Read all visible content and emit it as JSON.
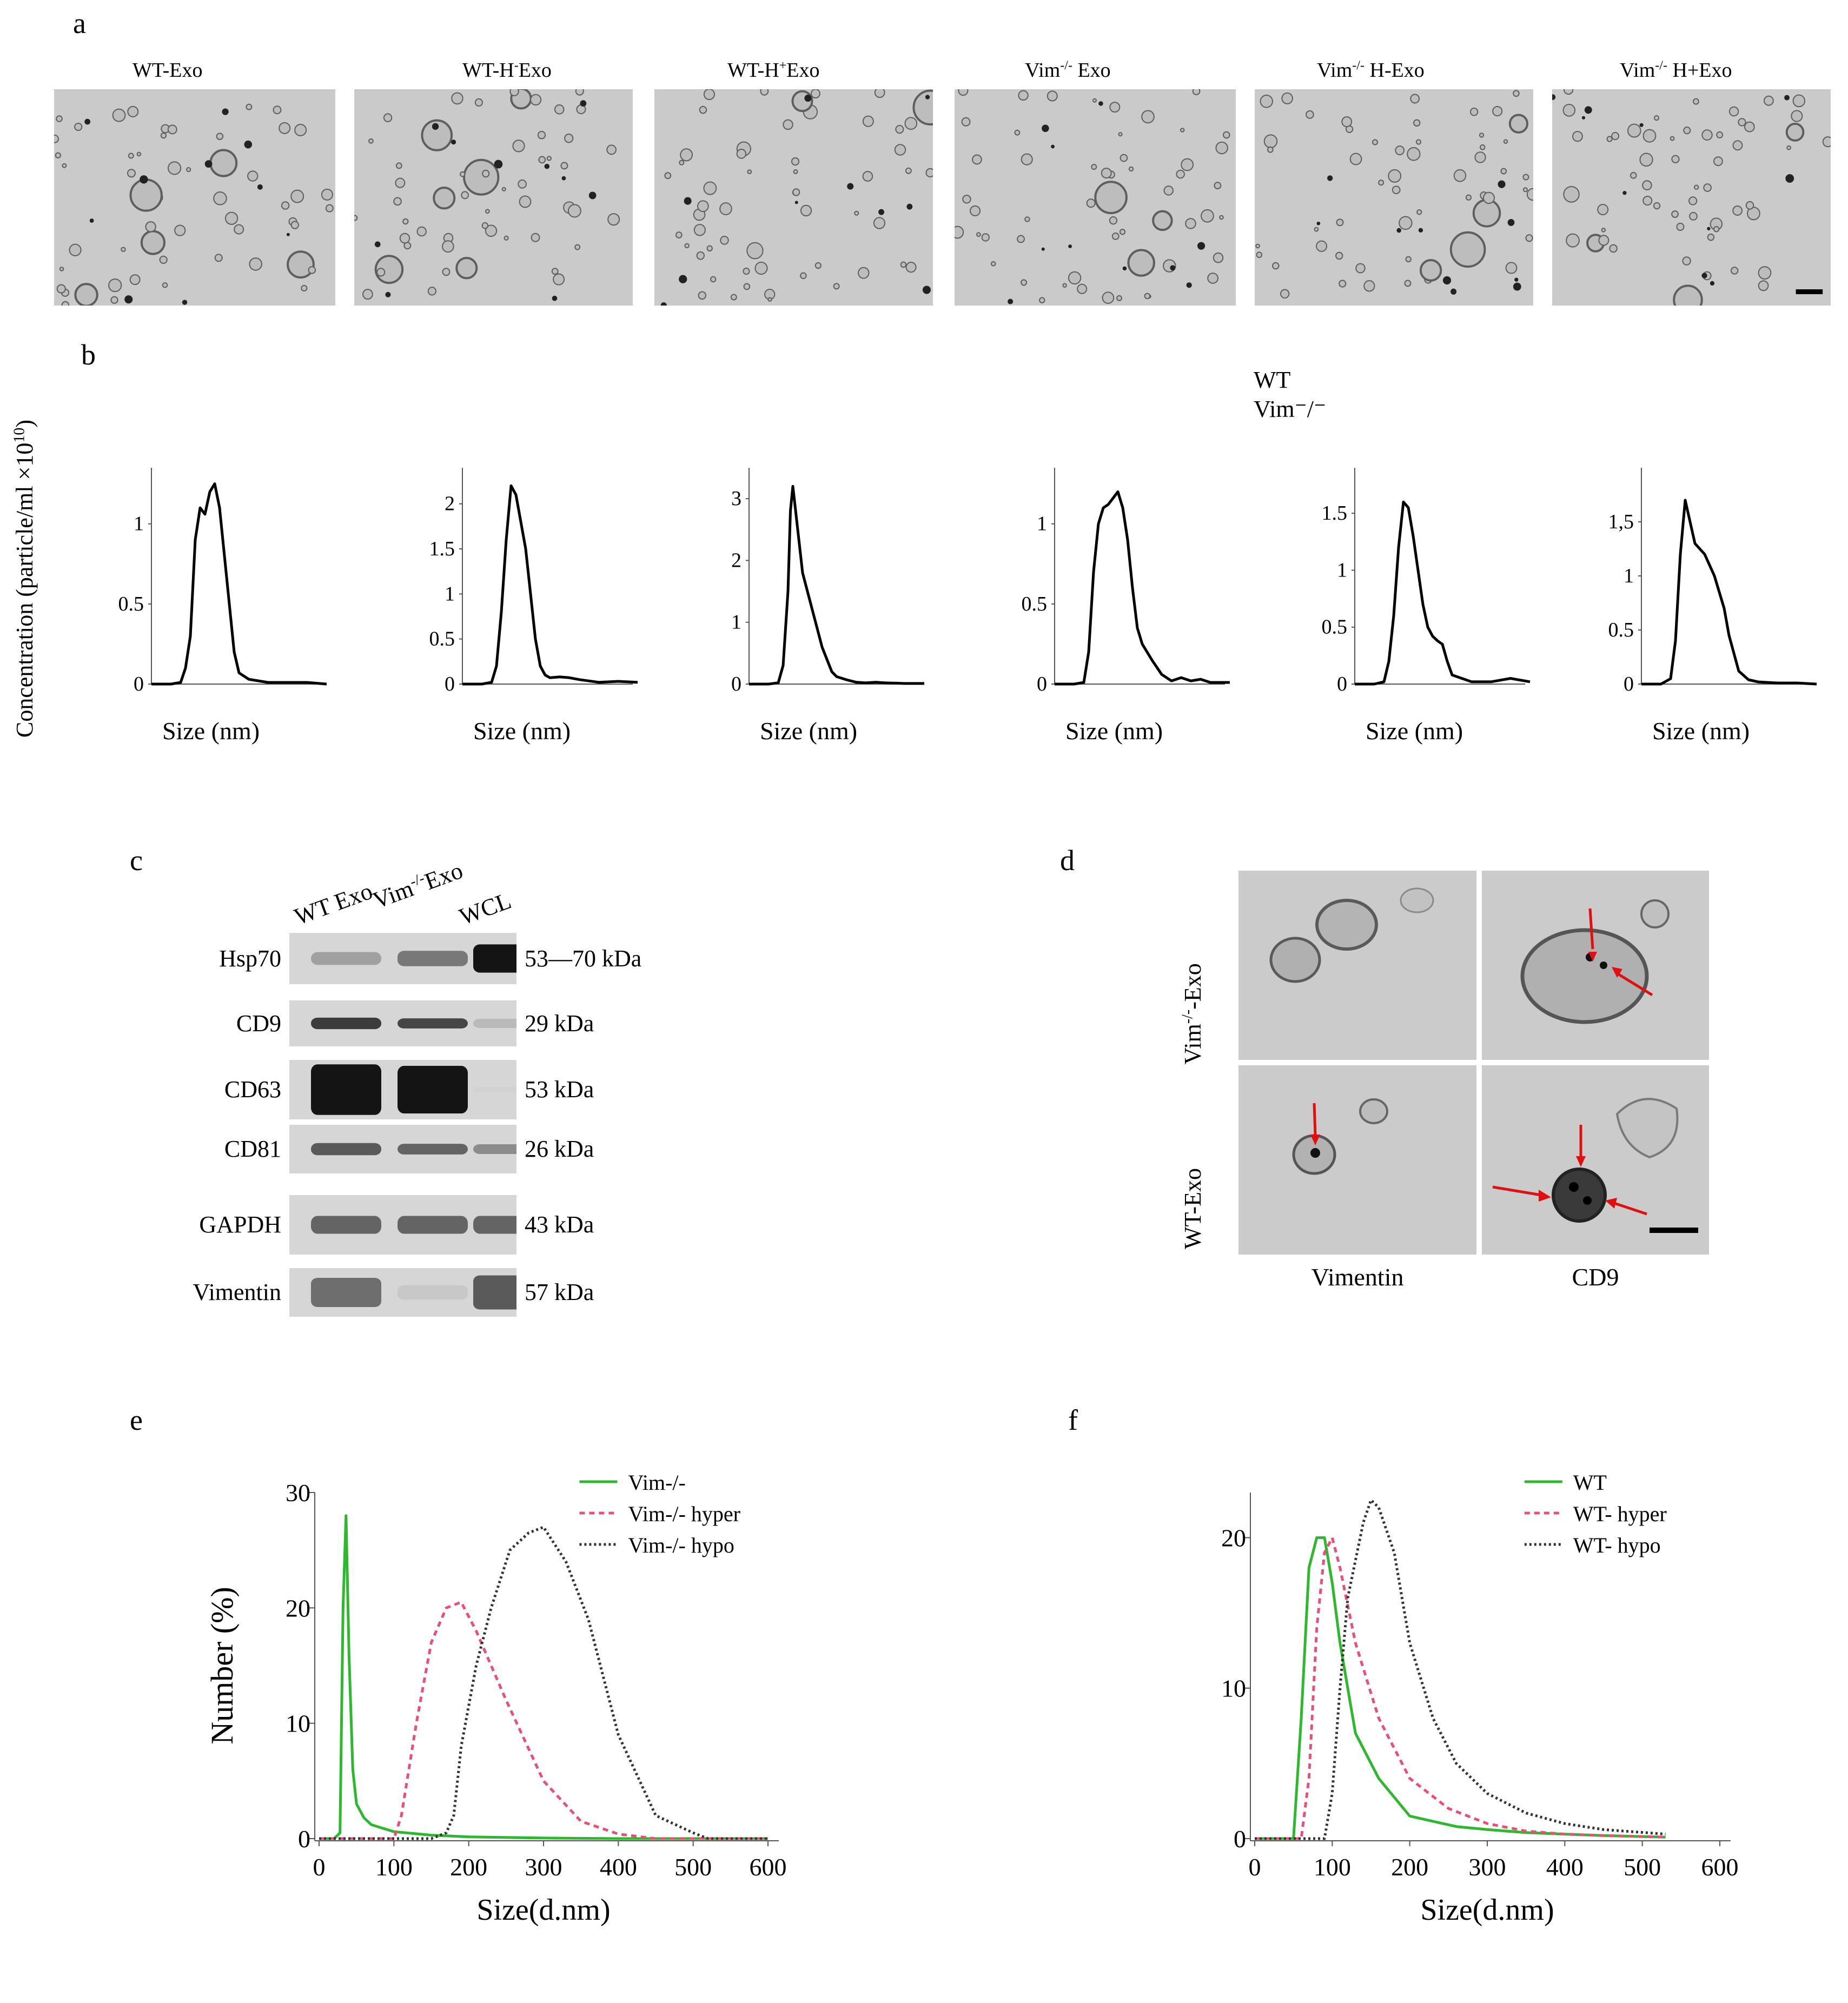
{
  "panels": {
    "a": "a",
    "b": "b",
    "c": "c",
    "d": "d",
    "e": "e",
    "f": "f"
  },
  "tem_labels": [
    {
      "base": "WT-Exo",
      "sup": "",
      "rest": ""
    },
    {
      "base": "WT-H",
      "sup": "-",
      "rest": "Exo"
    },
    {
      "base": "WT-H",
      "sup": "+",
      "rest": "Exo"
    },
    {
      "base": "Vim",
      "sup": "-/-",
      "rest": " Exo"
    },
    {
      "base": "Vim",
      "sup": "-/-",
      "rest": " H-Exo"
    },
    {
      "base": "Vim",
      "sup": "-/-",
      "rest": " H+Exo"
    }
  ],
  "nta": {
    "ylabel": "Concentration (particle/ml ×10",
    "ylabel_sup": "10",
    "ylabel_end": ")",
    "xlabel": "Size (nm)",
    "legend_line1": "WT",
    "legend_line2": "Vim⁻/⁻"
  },
  "chart_data": [
    {
      "type": "line",
      "title": "",
      "xlabel": "Size (nm)",
      "xticks": [
        "100",
        "200",
        "300"
      ],
      "yticks": [
        "0",
        "0.5",
        "1"
      ],
      "ylim": [
        0,
        1.35
      ],
      "x": [
        20,
        40,
        60,
        80,
        90,
        100,
        110,
        120,
        130,
        140,
        150,
        160,
        170,
        180,
        190,
        200,
        220,
        240,
        260,
        300,
        340,
        380
      ],
      "y": [
        0,
        0,
        0,
        0.01,
        0.1,
        0.3,
        0.9,
        1.1,
        1.06,
        1.2,
        1.25,
        1.1,
        0.8,
        0.5,
        0.2,
        0.07,
        0.03,
        0.02,
        0.01,
        0.01,
        0.01,
        0
      ]
    },
    {
      "type": "line",
      "title": "",
      "xlabel": "Size (nm)",
      "xticks": [
        "100",
        "200",
        "300"
      ],
      "yticks": [
        "0",
        "0.5",
        "1",
        "1.5",
        "2"
      ],
      "ylim": [
        0,
        2.4
      ],
      "x": [
        20,
        40,
        60,
        80,
        90,
        100,
        110,
        120,
        130,
        140,
        150,
        160,
        170,
        180,
        190,
        200,
        220,
        240,
        260,
        300,
        340,
        380
      ],
      "y": [
        0,
        0,
        0,
        0.02,
        0.2,
        0.8,
        1.6,
        2.2,
        2.1,
        1.8,
        1.5,
        1.0,
        0.5,
        0.2,
        0.1,
        0.07,
        0.08,
        0.07,
        0.05,
        0.02,
        0.03,
        0.02
      ]
    },
    {
      "type": "line",
      "title": "",
      "xlabel": "Size (nm)",
      "xticks": [
        "100",
        "200",
        "300"
      ],
      "yticks": [
        "0",
        "1",
        "2",
        "3"
      ],
      "ylim": [
        0,
        3.5
      ],
      "x": [
        20,
        40,
        60,
        80,
        90,
        100,
        105,
        110,
        120,
        130,
        140,
        150,
        160,
        170,
        180,
        190,
        200,
        220,
        240,
        260,
        280,
        300,
        340,
        380
      ],
      "y": [
        0,
        0,
        0,
        0.02,
        0.3,
        1.5,
        2.8,
        3.2,
        2.5,
        1.8,
        1.5,
        1.2,
        0.9,
        0.6,
        0.4,
        0.2,
        0.12,
        0.07,
        0.03,
        0.02,
        0.03,
        0.02,
        0.01,
        0.01
      ]
    },
    {
      "type": "line",
      "title": "",
      "xlabel": "Size (nm)",
      "xticks": [
        "100",
        "200",
        "300"
      ],
      "yticks": [
        "0",
        "0.5",
        "1"
      ],
      "ylim": [
        0,
        1.35
      ],
      "x": [
        20,
        40,
        60,
        80,
        90,
        100,
        110,
        120,
        130,
        140,
        150,
        160,
        170,
        180,
        190,
        200,
        220,
        240,
        260,
        280,
        300,
        320,
        340,
        380
      ],
      "y": [
        0,
        0,
        0,
        0.01,
        0.2,
        0.7,
        1.0,
        1.1,
        1.12,
        1.16,
        1.2,
        1.1,
        0.9,
        0.6,
        0.35,
        0.25,
        0.15,
        0.06,
        0.02,
        0.04,
        0.02,
        0.03,
        0.01,
        0.01
      ]
    },
    {
      "type": "line",
      "title": "",
      "xlabel": "Size (nm)",
      "xticks": [
        "100",
        "200",
        "300"
      ],
      "yticks": [
        "0",
        "0.5",
        "1",
        "1.5"
      ],
      "ylim": [
        0,
        1.9
      ],
      "x": [
        20,
        40,
        60,
        80,
        90,
        100,
        110,
        120,
        130,
        140,
        150,
        160,
        170,
        180,
        190,
        200,
        210,
        220,
        240,
        260,
        300,
        340,
        380
      ],
      "y": [
        0,
        0,
        0,
        0.02,
        0.2,
        0.6,
        1.2,
        1.6,
        1.55,
        1.3,
        1.0,
        0.7,
        0.5,
        0.42,
        0.38,
        0.35,
        0.2,
        0.08,
        0.05,
        0.02,
        0.02,
        0.05,
        0.02
      ]
    },
    {
      "type": "line",
      "title": "",
      "xlabel": "Size (nm)",
      "xticks": [
        "100",
        "200",
        "300"
      ],
      "yticks": [
        "0",
        "0.5",
        "1",
        "1,5"
      ],
      "ylim": [
        0,
        2.0
      ],
      "x": [
        20,
        40,
        60,
        80,
        90,
        100,
        110,
        120,
        130,
        140,
        150,
        160,
        170,
        180,
        190,
        200,
        220,
        240,
        260,
        300,
        340,
        380
      ],
      "y": [
        0,
        0,
        0,
        0.05,
        0.4,
        1.2,
        1.7,
        1.5,
        1.3,
        1.25,
        1.2,
        1.1,
        1.0,
        0.85,
        0.7,
        0.45,
        0.12,
        0.04,
        0.02,
        0.01,
        0.01,
        0
      ]
    },
    {
      "type": "line",
      "title": "",
      "xlabel": "Size(d.nm)",
      "ylabel": "Number (%)",
      "xticks": [
        "0",
        "100",
        "200",
        "300",
        "400",
        "500",
        "600"
      ],
      "yticks": [
        "0",
        "10",
        "20",
        "30"
      ],
      "xlim": [
        0,
        600
      ],
      "ylim": [
        0,
        30
      ],
      "legend": "top-right",
      "series": [
        {
          "name": "Vim-/-",
          "color": "#2db82d",
          "dash": "solid",
          "x": [
            0,
            20,
            28,
            32,
            36,
            40,
            45,
            50,
            60,
            70,
            100,
            150,
            200,
            300,
            400,
            500,
            600
          ],
          "y": [
            0,
            0,
            0.5,
            20,
            28,
            16,
            6,
            3,
            1.8,
            1.2,
            0.6,
            0.3,
            0.15,
            0.05,
            0,
            0,
            0
          ]
        },
        {
          "name": "Vim-/- hyper",
          "color": "#e8507a",
          "dash": "10,8",
          "x": [
            0,
            100,
            110,
            130,
            150,
            170,
            190,
            210,
            250,
            300,
            350,
            400,
            450,
            500,
            600
          ],
          "y": [
            0,
            0,
            2,
            10,
            17,
            20,
            20.5,
            18,
            12,
            5,
            1.5,
            0.4,
            0,
            0,
            0
          ]
        },
        {
          "name": "Vim-/- hypo",
          "color": "#333333",
          "dash": "4,5",
          "x": [
            0,
            150,
            170,
            180,
            190,
            210,
            230,
            255,
            280,
            300,
            330,
            360,
            400,
            450,
            500,
            520,
            600
          ],
          "y": [
            0,
            0,
            0.5,
            2,
            8,
            15,
            20,
            25,
            26.5,
            27,
            24,
            19,
            9,
            2,
            0.5,
            0,
            0
          ]
        }
      ]
    },
    {
      "type": "line",
      "title": "",
      "xlabel": "Size(d.nm)",
      "ylabel": "",
      "xticks": [
        "0",
        "100",
        "200",
        "300",
        "400",
        "500",
        "600"
      ],
      "yticks": [
        "0",
        "10",
        "20"
      ],
      "xlim": [
        0,
        600
      ],
      "ylim": [
        0,
        23
      ],
      "legend": "top-right",
      "series": [
        {
          "name": "WT",
          "color": "#2db82d",
          "dash": "solid",
          "x": [
            0,
            50,
            60,
            70,
            80,
            90,
            100,
            110,
            130,
            160,
            200,
            260,
            300,
            350,
            400,
            450,
            530
          ],
          "y": [
            0,
            0,
            8,
            18,
            20,
            20,
            17,
            13,
            7,
            4,
            1.5,
            0.8,
            0.6,
            0.4,
            0.3,
            0.2,
            0.1
          ]
        },
        {
          "name": "WT- hyper",
          "color": "#e8507a",
          "dash": "10,8",
          "x": [
            0,
            60,
            70,
            80,
            90,
            100,
            110,
            130,
            160,
            200,
            250,
            300,
            350,
            400,
            450,
            530
          ],
          "y": [
            0,
            0,
            4,
            14,
            19,
            20,
            18,
            13,
            8,
            4,
            2,
            1,
            0.5,
            0.3,
            0.2,
            0.1
          ]
        },
        {
          "name": "WT- hypo",
          "color": "#333333",
          "dash": "4,5",
          "x": [
            0,
            90,
            100,
            110,
            120,
            140,
            150,
            160,
            180,
            200,
            230,
            260,
            300,
            350,
            400,
            450,
            530
          ],
          "y": [
            0,
            0,
            3,
            10,
            16,
            21,
            22.5,
            22,
            19,
            13,
            8,
            5,
            3,
            1.7,
            1,
            0.6,
            0.3
          ]
        }
      ]
    }
  ],
  "western": {
    "columns": [
      "WT Exo",
      "Vim",
      "WCL"
    ],
    "col2_sup": "-/-",
    "col2_rest": "Exo",
    "rows": [
      {
        "label": "Hsp70",
        "kda": "53—70 kDa"
      },
      {
        "label": "CD9",
        "kda": "29 kDa"
      },
      {
        "label": "CD63",
        "kda": "53 kDa"
      },
      {
        "label": "CD81",
        "kda": "26 kDa"
      },
      {
        "label": "GAPDH",
        "kda": "43 kDa"
      },
      {
        "label": "Vimentin",
        "kda": "57 kDa"
      }
    ]
  },
  "immunogold": {
    "row1_base": "Vim",
    "row1_sup": "-/-",
    "row1_rest": "-Exo",
    "row2": "WT-Exo",
    "col1": "Vimentin",
    "col2": "CD9"
  }
}
